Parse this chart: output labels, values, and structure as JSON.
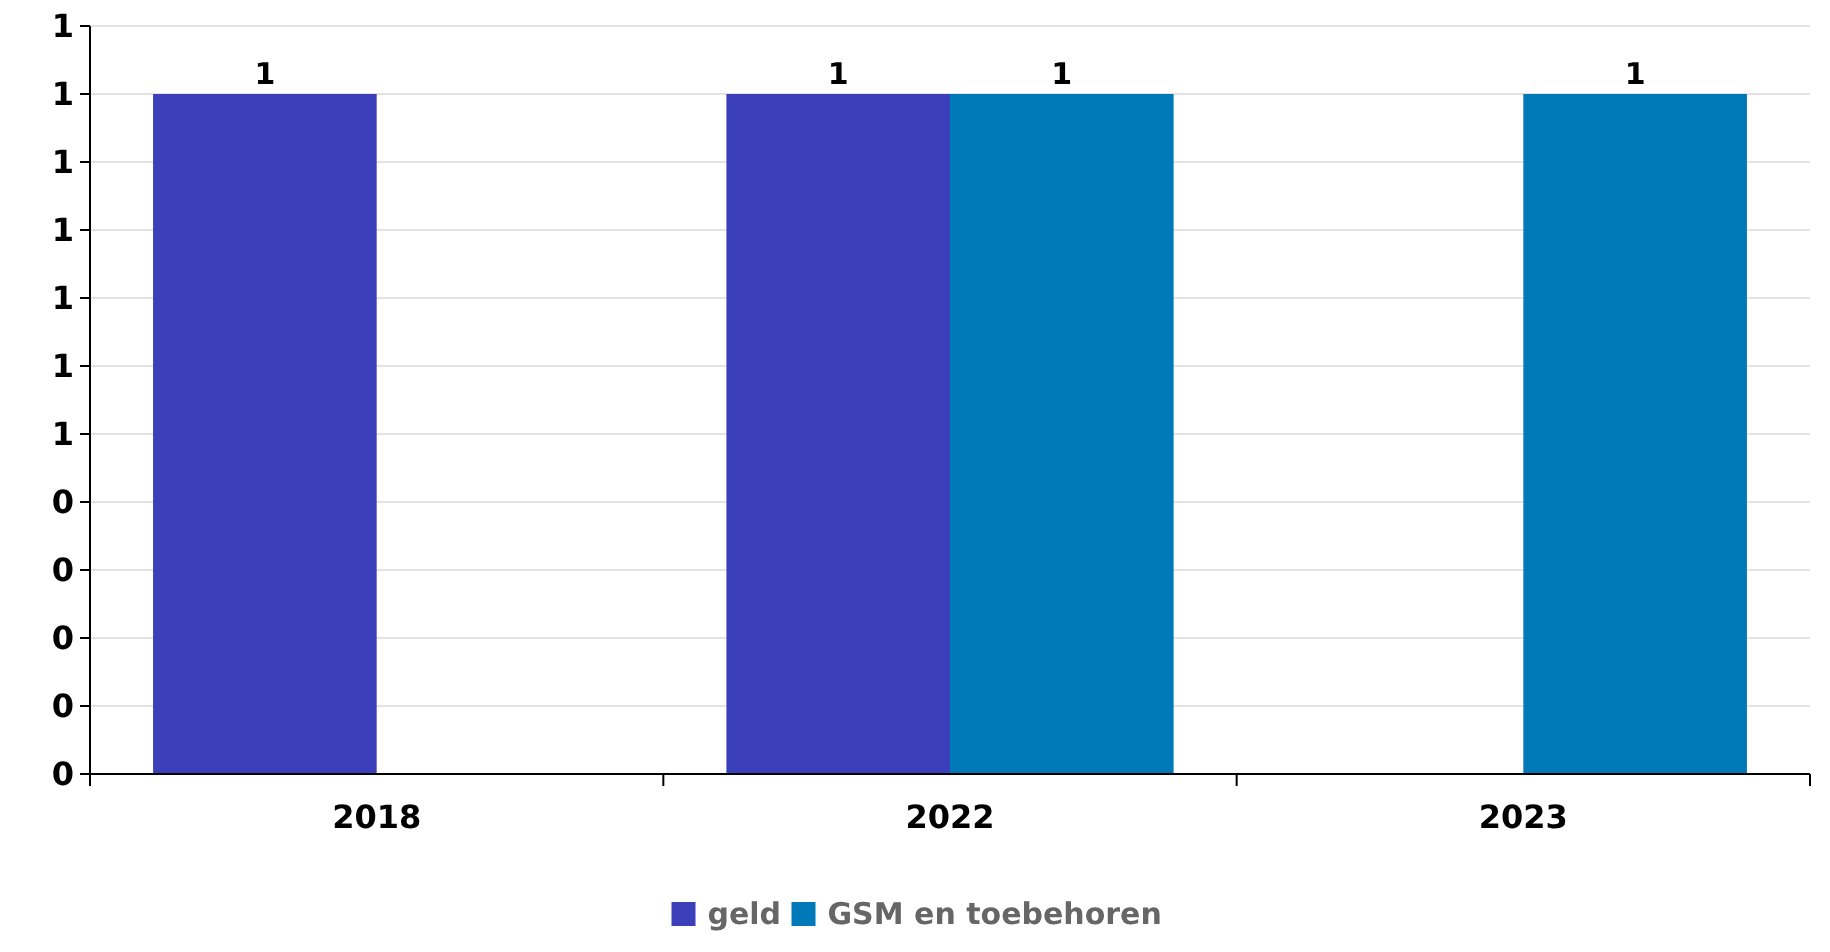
{
  "chart_data": {
    "type": "bar",
    "categories": [
      "2018",
      "2022",
      "2023"
    ],
    "series": [
      {
        "name": "geld",
        "color": "#3b3fb9",
        "values": [
          1,
          1,
          null
        ]
      },
      {
        "name": "GSM en toebehoren",
        "color": "#0079b8",
        "values": [
          null,
          1,
          1
        ]
      }
    ],
    "ylim": [
      0,
      1.1
    ],
    "yticks": [
      {
        "value": 0,
        "label": "0"
      },
      {
        "value": 0.1,
        "label": "0"
      },
      {
        "value": 0.2,
        "label": "0"
      },
      {
        "value": 0.3,
        "label": "0"
      },
      {
        "value": 0.4,
        "label": "0"
      },
      {
        "value": 0.5,
        "label": "1"
      },
      {
        "value": 0.6,
        "label": "1"
      },
      {
        "value": 0.7,
        "label": "1"
      },
      {
        "value": 0.8,
        "label": "1"
      },
      {
        "value": 0.9,
        "label": "1"
      },
      {
        "value": 1.0,
        "label": "1"
      },
      {
        "value": 1.1,
        "label": "1"
      }
    ],
    "grid": "y",
    "legend": "bottom",
    "data_labels": true
  }
}
